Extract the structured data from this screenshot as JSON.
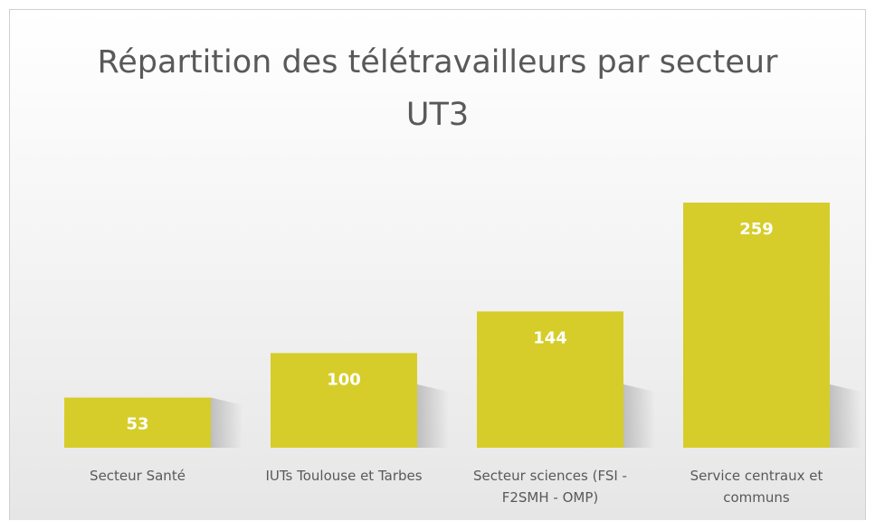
{
  "chart_data": {
    "type": "bar",
    "title": "Répartition des télétravailleurs par secteur UT3",
    "categories": [
      "Secteur Santé",
      "IUTs Toulouse et Tarbes",
      "Secteur sciences (FSI - F2SMH - OMP)",
      "Service centraux et communs"
    ],
    "values": [
      53,
      100,
      144,
      259
    ],
    "color": "#d6cd2b"
  }
}
